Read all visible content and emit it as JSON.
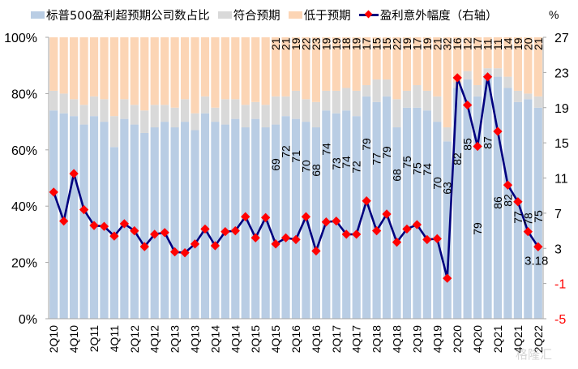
{
  "chart_data": {
    "type": "bar",
    "subtype": "stacked-bar-100-with-line-secondary-axis",
    "title": "",
    "legend": [
      {
        "name": "标普500盈利超预期公司数占比",
        "color": "#b9cde4"
      },
      {
        "name": "符合预期",
        "color": "#d9d9d9"
      },
      {
        "name": "低于预期",
        "color": "#fcd5b5"
      },
      {
        "name": "盈利意外幅度（右轴）",
        "color": "#00007f",
        "marker_color": "#ff0000"
      }
    ],
    "legend_position": "top",
    "right_axis_unit": "%",
    "categories": [
      "2Q10",
      "3Q10",
      "4Q10",
      "1Q11",
      "2Q11",
      "3Q11",
      "4Q11",
      "1Q12",
      "2Q12",
      "3Q12",
      "4Q12",
      "1Q13",
      "2Q13",
      "3Q13",
      "4Q13",
      "1Q14",
      "2Q14",
      "3Q14",
      "4Q14",
      "1Q15",
      "2Q15",
      "3Q15",
      "4Q15",
      "1Q16",
      "2Q16",
      "3Q16",
      "4Q16",
      "1Q17",
      "2Q17",
      "3Q17",
      "4Q17",
      "1Q18",
      "2Q18",
      "3Q18",
      "4Q18",
      "1Q19",
      "2Q19",
      "3Q19",
      "4Q19",
      "1Q20",
      "2Q20",
      "3Q20",
      "4Q20",
      "1Q21",
      "2Q21",
      "3Q21",
      "4Q21",
      "1Q22",
      "2Q22"
    ],
    "x_tick_labels": [
      "2Q10",
      "4Q10",
      "2Q11",
      "4Q11",
      "2Q12",
      "4Q12",
      "2Q13",
      "4Q13",
      "2Q14",
      "4Q14",
      "2Q15",
      "4Q15",
      "2Q16",
      "4Q16",
      "2Q17",
      "4Q17",
      "2Q18",
      "4Q18",
      "2Q19",
      "4Q19",
      "2Q20",
      "4Q20",
      "2Q21",
      "4Q21",
      "2Q22"
    ],
    "y_left": {
      "min": 0,
      "max": 100,
      "ticks": [
        "0%",
        "20%",
        "40%",
        "60%",
        "80%",
        "100%"
      ]
    },
    "y_right": {
      "min": -5,
      "max": 27,
      "ticks": [
        "-5",
        "-1",
        "3",
        "7",
        "11",
        "15",
        "19",
        "23",
        "27"
      ],
      "negative_color": "#ff0000"
    },
    "series": [
      {
        "name": "标普500盈利超预期公司数占比",
        "axis": "left",
        "values": [
          74,
          73,
          72,
          69,
          72,
          70,
          61,
          71,
          69,
          66,
          68,
          70,
          68,
          70,
          67,
          73,
          70,
          69,
          71,
          68,
          71,
          68,
          69,
          72,
          71,
          70,
          68,
          74,
          73,
          74,
          72,
          79,
          77,
          79,
          68,
          75,
          75,
          74,
          70,
          63,
          82,
          85,
          79,
          87,
          86,
          82,
          77,
          78,
          75
        ]
      },
      {
        "name": "符合预期",
        "axis": "left",
        "values": [
          7,
          7,
          6,
          7,
          7,
          8,
          11,
          7,
          7,
          8,
          8,
          6,
          7,
          8,
          6,
          6,
          5,
          9,
          7,
          8,
          6,
          8,
          10,
          7,
          10,
          8,
          9,
          7,
          8,
          8,
          9,
          4,
          8,
          6,
          10,
          6,
          8,
          7,
          9,
          5,
          2,
          3,
          4,
          2,
          3,
          4,
          4,
          2,
          4
        ]
      },
      {
        "name": "低于预期",
        "axis": "left",
        "values": [
          19,
          20,
          22,
          24,
          21,
          22,
          28,
          22,
          24,
          26,
          24,
          24,
          25,
          22,
          27,
          21,
          25,
          22,
          22,
          24,
          23,
          24,
          21,
          21,
          19,
          22,
          23,
          19,
          19,
          18,
          19,
          17,
          15,
          15,
          22,
          19,
          17,
          19,
          21,
          32,
          16,
          12,
          17,
          11,
          11,
          14,
          19,
          20,
          21
        ]
      },
      {
        "name": "盈利意外幅度（右轴）",
        "type": "line",
        "axis": "right",
        "values": [
          9.4,
          6.1,
          11.5,
          7.4,
          5.6,
          5.5,
          4.4,
          5.8,
          5.0,
          3.2,
          4.6,
          4.8,
          2.6,
          2.5,
          3.5,
          5.2,
          3.3,
          4.9,
          5.0,
          6.6,
          4.2,
          6.5,
          3.5,
          4.2,
          4.0,
          6.6,
          2.7,
          6.0,
          6.1,
          4.6,
          4.6,
          8.4,
          5.0,
          6.9,
          3.7,
          5.2,
          5.7,
          4.0,
          4.1,
          -0.4,
          22.4,
          19.3,
          14.6,
          22.5,
          16.3,
          10.2,
          8.3,
          4.9,
          3.18
        ]
      }
    ],
    "data_labels": {
      "start_category": "4Q15",
      "beat": [
        69,
        72,
        71,
        70,
        68,
        74,
        73,
        74,
        72,
        79,
        77,
        79,
        68,
        75,
        75,
        74,
        70,
        63,
        82,
        85,
        79,
        87,
        86,
        82,
        77,
        78,
        75
      ],
      "miss": [
        21,
        21,
        19,
        22,
        23,
        19,
        19,
        18,
        19,
        17,
        15,
        15,
        22,
        19,
        17,
        19,
        21,
        32,
        16,
        12,
        17,
        11,
        11,
        14,
        19,
        20,
        21
      ],
      "line_last_label": "3.18"
    }
  },
  "watermark": "格隆汇"
}
